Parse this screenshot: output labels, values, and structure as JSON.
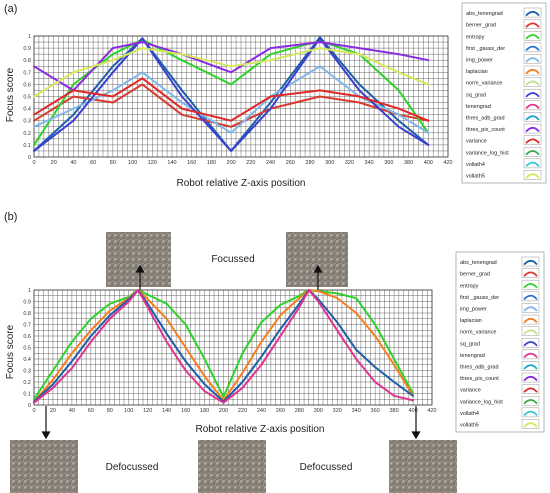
{
  "figure": {
    "panel_a_label": "(a)",
    "panel_b_label": "(b)"
  },
  "annotations": {
    "focussed": "Focussed",
    "defocussed_left": "Defocussed",
    "defocussed_right": "Defocussed"
  },
  "legend_labels": [
    "abs_tenengrad",
    "berner_grad",
    "entropy",
    "first _gauss_der",
    "img_power",
    "laplacian",
    "norm_variance",
    "sq_grad",
    "tenengrad",
    "thres_adb_grad",
    "thres_pix_count",
    "variance",
    "variance_log_hist",
    "vollath4",
    "vollath5"
  ],
  "colors": {
    "abs_tenengrad": "#1f5fa8",
    "berner_grad": "#d83a2e",
    "entropy": "#2fd12a",
    "first _gauss_der": "#2b6fd6",
    "img_power": "#7fb7e8",
    "laplacian": "#f57f20",
    "norm_variance": "#bfe28a",
    "sq_grad": "#3b3fd0",
    "tenengrad": "#e0338f",
    "thres_adb_grad": "#21a5c9",
    "thres_pix_count": "#8a2be2",
    "variance": "#e02828",
    "variance_log_hist": "#3aa64a",
    "vollath4": "#35c6d8",
    "vollath5": "#d6e85a",
    "grid": "#2b2b2b",
    "photo": "#8d857c"
  },
  "chart_data": [
    {
      "type": "line",
      "panel": "(a)",
      "xlabel": "Robot relative Z-axis position",
      "ylabel": "Focus score",
      "xlim": [
        0,
        420
      ],
      "ylim": [
        0,
        1
      ],
      "xticks": [
        0,
        20,
        40,
        60,
        80,
        100,
        120,
        140,
        160,
        180,
        200,
        220,
        240,
        260,
        280,
        300,
        320,
        340,
        360,
        380,
        400,
        420
      ],
      "yticks": [
        0,
        0.1,
        0.2,
        0.3,
        0.4,
        0.5,
        0.6,
        0.7,
        0.8,
        0.9,
        1
      ],
      "grid": true,
      "legend_position": "right",
      "series": [
        {
          "name": "abs_tenengrad",
          "x": [
            0,
            40,
            80,
            110,
            150,
            200,
            240,
            290,
            330,
            370,
            400
          ],
          "y": [
            0.05,
            0.35,
            0.75,
            0.98,
            0.55,
            0.05,
            0.45,
            0.99,
            0.6,
            0.3,
            0.1
          ]
        },
        {
          "name": "berner_grad",
          "x": [
            0,
            40,
            80,
            110,
            150,
            200,
            240,
            290,
            330,
            370,
            400
          ],
          "y": [
            0.3,
            0.5,
            0.45,
            0.6,
            0.35,
            0.25,
            0.4,
            0.5,
            0.45,
            0.35,
            0.3
          ]
        },
        {
          "name": "entropy",
          "x": [
            0,
            40,
            80,
            110,
            150,
            200,
            240,
            290,
            330,
            370,
            400
          ],
          "y": [
            0.1,
            0.6,
            0.85,
            0.97,
            0.8,
            0.6,
            0.85,
            0.96,
            0.85,
            0.55,
            0.2
          ]
        },
        {
          "name": "img_power",
          "x": [
            0,
            40,
            80,
            110,
            150,
            200,
            240,
            290,
            330,
            370,
            400
          ],
          "y": [
            0.25,
            0.4,
            0.55,
            0.7,
            0.45,
            0.2,
            0.5,
            0.75,
            0.5,
            0.35,
            0.2
          ]
        },
        {
          "name": "sq_grad",
          "x": [
            0,
            40,
            80,
            110,
            150,
            200,
            240,
            290,
            330,
            370,
            400
          ],
          "y": [
            0.05,
            0.3,
            0.7,
            0.98,
            0.5,
            0.05,
            0.4,
            0.98,
            0.55,
            0.25,
            0.1
          ]
        },
        {
          "name": "thres_pix_count",
          "x": [
            0,
            40,
            80,
            110,
            150,
            200,
            240,
            290,
            330,
            370,
            400
          ],
          "y": [
            0.75,
            0.55,
            0.9,
            0.95,
            0.85,
            0.7,
            0.9,
            0.95,
            0.9,
            0.85,
            0.8
          ]
        },
        {
          "name": "variance",
          "x": [
            0,
            40,
            80,
            110,
            150,
            200,
            240,
            290,
            330,
            370,
            400
          ],
          "y": [
            0.35,
            0.55,
            0.5,
            0.65,
            0.4,
            0.3,
            0.5,
            0.55,
            0.5,
            0.4,
            0.3
          ]
        },
        {
          "name": "vollath5",
          "x": [
            0,
            40,
            80,
            110,
            150,
            200,
            240,
            290,
            330,
            370,
            400
          ],
          "y": [
            0.5,
            0.7,
            0.8,
            0.9,
            0.85,
            0.75,
            0.8,
            0.9,
            0.85,
            0.7,
            0.6
          ]
        }
      ]
    },
    {
      "type": "line",
      "panel": "(b)",
      "xlabel": "Robot relative Z-axis position",
      "ylabel": "Focus score",
      "xlim": [
        0,
        420
      ],
      "ylim": [
        0,
        1
      ],
      "xticks": [
        0,
        20,
        40,
        60,
        80,
        100,
        120,
        140,
        160,
        180,
        200,
        220,
        240,
        260,
        280,
        300,
        320,
        340,
        360,
        380,
        400,
        420
      ],
      "yticks": [
        0,
        0.1,
        0.2,
        0.3,
        0.4,
        0.5,
        0.6,
        0.7,
        0.8,
        0.9,
        1
      ],
      "grid": true,
      "legend_position": "right",
      "series": [
        {
          "name": "entropy",
          "x": [
            0,
            20,
            40,
            60,
            80,
            100,
            110,
            120,
            140,
            160,
            180,
            200,
            220,
            240,
            260,
            280,
            290,
            300,
            320,
            340,
            360,
            380,
            400
          ],
          "y": [
            0.05,
            0.3,
            0.55,
            0.75,
            0.88,
            0.94,
            1.0,
            0.96,
            0.88,
            0.7,
            0.4,
            0.07,
            0.45,
            0.72,
            0.87,
            0.95,
            1.0,
            0.99,
            0.97,
            0.93,
            0.7,
            0.4,
            0.1
          ]
        },
        {
          "name": "laplacian",
          "x": [
            0,
            20,
            40,
            60,
            80,
            100,
            110,
            120,
            140,
            160,
            180,
            200,
            220,
            240,
            260,
            280,
            290,
            300,
            320,
            340,
            360,
            380,
            400
          ],
          "y": [
            0.03,
            0.22,
            0.45,
            0.65,
            0.82,
            0.93,
            1.0,
            0.92,
            0.75,
            0.5,
            0.25,
            0.04,
            0.28,
            0.55,
            0.78,
            0.93,
            1.0,
            0.99,
            0.93,
            0.8,
            0.6,
            0.35,
            0.08
          ]
        },
        {
          "name": "abs_tenengrad",
          "x": [
            0,
            20,
            40,
            60,
            80,
            100,
            110,
            120,
            140,
            160,
            180,
            200,
            220,
            240,
            260,
            280,
            290,
            300,
            320,
            340,
            360,
            380,
            400
          ],
          "y": [
            0.03,
            0.18,
            0.38,
            0.6,
            0.78,
            0.92,
            1.0,
            0.88,
            0.62,
            0.38,
            0.18,
            0.03,
            0.2,
            0.42,
            0.66,
            0.88,
            1.0,
            0.92,
            0.72,
            0.48,
            0.33,
            0.2,
            0.08
          ]
        },
        {
          "name": "tenengrad",
          "x": [
            0,
            20,
            40,
            60,
            80,
            100,
            110,
            120,
            140,
            160,
            180,
            200,
            220,
            240,
            260,
            280,
            290,
            300,
            320,
            340,
            360,
            380,
            400
          ],
          "y": [
            0.02,
            0.15,
            0.32,
            0.55,
            0.75,
            0.9,
            1.0,
            0.85,
            0.55,
            0.3,
            0.12,
            0.02,
            0.15,
            0.35,
            0.6,
            0.85,
            1.0,
            0.9,
            0.65,
            0.4,
            0.2,
            0.08,
            0.04
          ]
        }
      ]
    }
  ]
}
